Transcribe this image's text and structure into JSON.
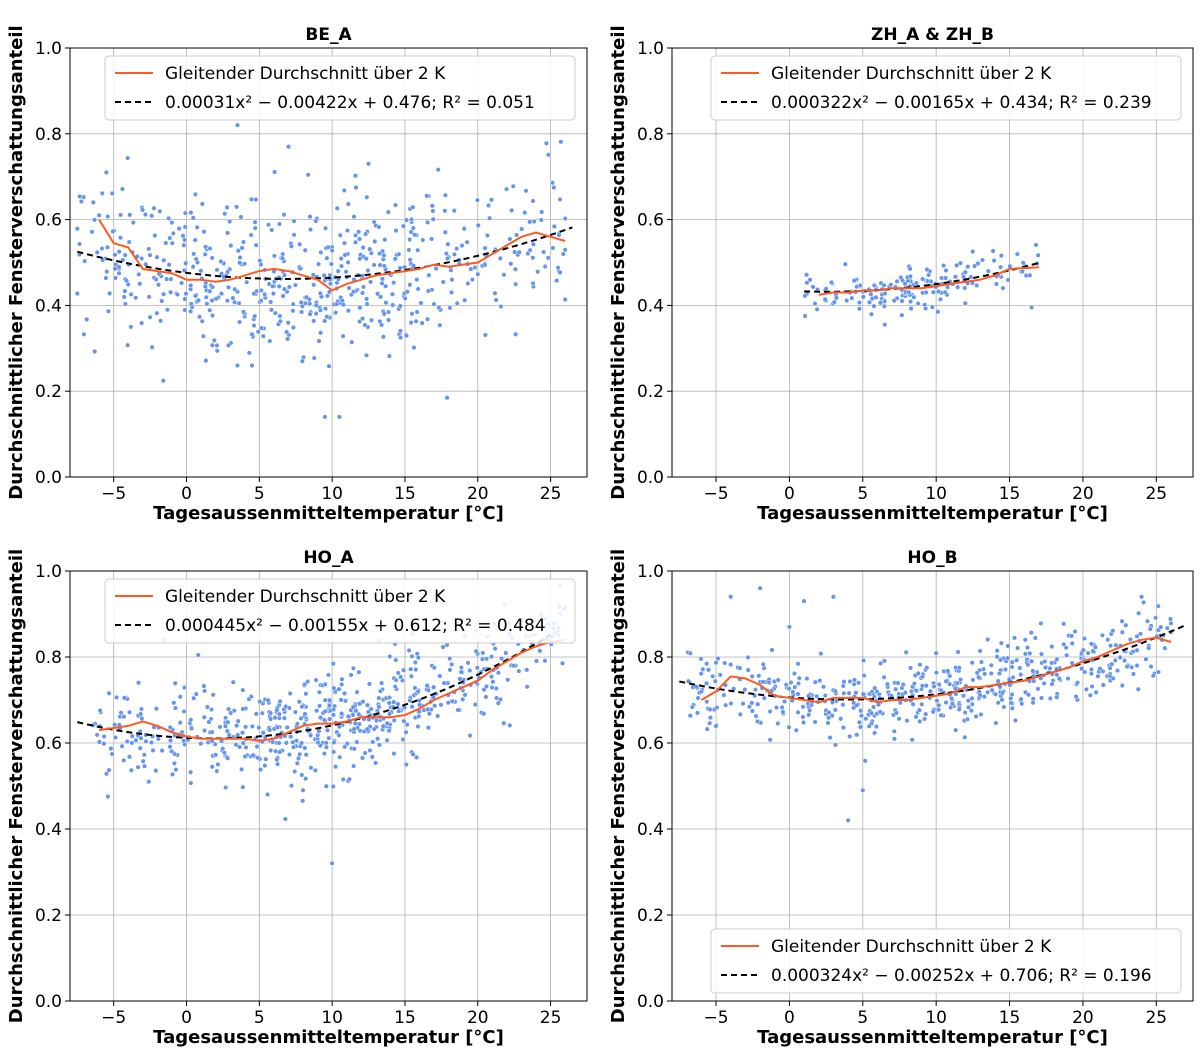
{
  "chart_data": [
    {
      "type": "scatter",
      "title": "BE_A",
      "xlabel": "Tagesaussenmitteltemperatur [°C]",
      "ylabel": "Durchschnittlicher Fensterverschattungsanteil",
      "xlim": [
        -8,
        27.5
      ],
      "ylim": [
        0,
        1
      ],
      "xticks": [
        -5,
        0,
        5,
        10,
        15,
        20,
        25
      ],
      "yticks": [
        0.0,
        0.2,
        0.4,
        0.6,
        0.8,
        1.0
      ],
      "grid": true,
      "legend_position": "top-right",
      "scatter_summary": {
        "x_range": [
          -7.5,
          26
        ],
        "approx_count": 600,
        "spread": 0.09,
        "outliers": [
          [
            3.5,
            0.82
          ],
          [
            7,
            0.77
          ],
          [
            -5.5,
            0.71
          ],
          [
            12.5,
            0.73
          ],
          [
            9.5,
            0.14
          ],
          [
            10.5,
            0.14
          ],
          [
            4.5,
            0.26
          ],
          [
            3.5,
            0.26
          ]
        ]
      },
      "series": [
        {
          "name": "Gleitender Durchschnitt über 2 K",
          "style": "line",
          "color": "#ff5a1f",
          "x": [
            -6,
            -5,
            -4,
            -3,
            -2,
            -1,
            0,
            1,
            2,
            3,
            4,
            5,
            6,
            7,
            8,
            9,
            10,
            11,
            12,
            13,
            14,
            15,
            16,
            17,
            18,
            19,
            20,
            21,
            22,
            23,
            24,
            25,
            26
          ],
          "y": [
            0.6,
            0.545,
            0.535,
            0.485,
            0.48,
            0.475,
            0.46,
            0.46,
            0.455,
            0.46,
            0.47,
            0.48,
            0.485,
            0.48,
            0.47,
            0.46,
            0.435,
            0.45,
            0.46,
            0.47,
            0.475,
            0.48,
            0.485,
            0.495,
            0.49,
            0.495,
            0.5,
            0.52,
            0.54,
            0.56,
            0.57,
            0.56,
            0.55
          ]
        },
        {
          "name": "0.00031x² − 0.00422x + 0.476; R² = 0.051",
          "style": "dashed",
          "color": "#000000",
          "fit": [
            0.00031,
            -0.00422,
            0.476
          ],
          "x_range": [
            -7.5,
            26.5
          ]
        }
      ],
      "legend_entries": [
        "Gleitender Durchschnitt über 2 K",
        "0.00031x² − 0.00422x + 0.476; R² = 0.051"
      ]
    },
    {
      "type": "scatter",
      "title": "ZH_A & ZH_B",
      "xlabel": "Tagesaussenmitteltemperatur [°C]",
      "ylabel": "Durchschnittlicher Fensterverschattungsanteil",
      "xlim": [
        -8,
        27.5
      ],
      "ylim": [
        0,
        1
      ],
      "xticks": [
        -5,
        0,
        5,
        10,
        15,
        20,
        25
      ],
      "yticks": [
        0.0,
        0.2,
        0.4,
        0.6,
        0.8,
        1.0
      ],
      "grid": true,
      "legend_position": "top-right",
      "scatter_summary": {
        "x_range": [
          1,
          17
        ],
        "approx_count": 170,
        "spread": 0.025,
        "outliers": [
          [
            16.5,
            0.395
          ],
          [
            6.5,
            0.355
          ]
        ]
      },
      "series": [
        {
          "name": "Gleitender Durchschnitt über 2 K",
          "style": "line",
          "color": "#ff5a1f",
          "x": [
            2,
            3,
            4,
            5,
            6,
            7,
            8,
            9,
            10,
            11,
            12,
            13,
            14,
            15,
            16,
            17
          ],
          "y": [
            0.425,
            0.43,
            0.43,
            0.435,
            0.435,
            0.44,
            0.44,
            0.44,
            0.445,
            0.45,
            0.455,
            0.46,
            0.47,
            0.485,
            0.487,
            0.489
          ]
        },
        {
          "name": "0.000322x² − 0.00165x + 0.434; R² = 0.239",
          "style": "dashed",
          "color": "#000000",
          "fit": [
            0.000322,
            -0.00165,
            0.434
          ],
          "x_range": [
            1,
            17
          ]
        }
      ],
      "legend_entries": [
        "Gleitender Durchschnitt über 2 K",
        "0.000322x² − 0.00165x + 0.434; R² = 0.239"
      ]
    },
    {
      "type": "scatter",
      "title": "HO_A",
      "xlabel": "Tagesaussenmitteltemperatur [°C]",
      "ylabel": "Durchschnittlicher Fensterverschattungsanteil",
      "xlim": [
        -8,
        27.5
      ],
      "ylim": [
        0,
        1
      ],
      "xticks": [
        -5,
        0,
        5,
        10,
        15,
        20,
        25
      ],
      "yticks": [
        0.0,
        0.2,
        0.4,
        0.6,
        0.8,
        1.0
      ],
      "grid": true,
      "legend_position": "top-right",
      "scatter_summary": {
        "x_range": [
          -6.5,
          26
        ],
        "approx_count": 620,
        "spread": 0.06,
        "outliers": [
          [
            10,
            0.32
          ],
          [
            -1.5,
            0.84
          ],
          [
            8,
            0.49
          ]
        ]
      },
      "series": [
        {
          "name": "Gleitender Durchschnitt über 2 K",
          "style": "line",
          "color": "#ff5a1f",
          "x": [
            -6,
            -5,
            -4,
            -3,
            -2,
            -1,
            0,
            1,
            2,
            3,
            4,
            5,
            6,
            7,
            8,
            9,
            10,
            11,
            12,
            13,
            14,
            15,
            16,
            17,
            18,
            19,
            20,
            21,
            22,
            23,
            24,
            25,
            26
          ],
          "y": [
            0.63,
            0.635,
            0.64,
            0.65,
            0.64,
            0.625,
            0.615,
            0.61,
            0.61,
            0.61,
            0.61,
            0.605,
            0.61,
            0.625,
            0.64,
            0.645,
            0.645,
            0.65,
            0.66,
            0.66,
            0.66,
            0.665,
            0.68,
            0.7,
            0.715,
            0.73,
            0.745,
            0.77,
            0.79,
            0.81,
            0.825,
            0.835,
            0.84
          ]
        },
        {
          "name": "0.000445x² − 0.00155x + 0.612; R² = 0.484",
          "style": "dashed",
          "color": "#000000",
          "fit": [
            0.000445,
            -0.00155,
            0.612
          ],
          "x_range": [
            -7.5,
            25
          ]
        }
      ],
      "legend_entries": [
        "Gleitender Durchschnitt über 2 K",
        "0.000445x² − 0.00155x + 0.612; R² = 0.484"
      ]
    },
    {
      "type": "scatter",
      "title": "HO_B",
      "xlabel": "Tagesaussenmitteltemperatur [°C]",
      "ylabel": "Durchschnittlicher Fensterverschattungsanteil",
      "xlim": [
        -8,
        27.5
      ],
      "ylim": [
        0,
        1
      ],
      "xticks": [
        -5,
        0,
        5,
        10,
        15,
        20,
        25
      ],
      "yticks": [
        0.0,
        0.2,
        0.4,
        0.6,
        0.8,
        1.0
      ],
      "grid": true,
      "legend_position": "bottom-right",
      "scatter_summary": {
        "x_range": [
          -7,
          26
        ],
        "approx_count": 560,
        "spread": 0.045,
        "outliers": [
          [
            -4,
            0.94
          ],
          [
            -2,
            0.96
          ],
          [
            1,
            0.93
          ],
          [
            3,
            0.94
          ],
          [
            4,
            0.42
          ],
          [
            5,
            0.49
          ],
          [
            24,
            0.94
          ],
          [
            0,
            0.87
          ]
        ]
      },
      "series": [
        {
          "name": "Gleitender Durchschnitt über 2 K",
          "style": "line",
          "color": "#ff5a1f",
          "x": [
            -6,
            -5,
            -4,
            -3,
            -2,
            -1,
            0,
            1,
            2,
            3,
            4,
            5,
            6,
            7,
            8,
            9,
            10,
            11,
            12,
            13,
            14,
            15,
            16,
            17,
            18,
            19,
            20,
            21,
            22,
            23,
            24,
            25,
            26
          ],
          "y": [
            0.7,
            0.72,
            0.755,
            0.75,
            0.735,
            0.71,
            0.705,
            0.7,
            0.695,
            0.705,
            0.705,
            0.705,
            0.695,
            0.7,
            0.7,
            0.705,
            0.71,
            0.715,
            0.73,
            0.73,
            0.735,
            0.74,
            0.745,
            0.755,
            0.765,
            0.775,
            0.79,
            0.8,
            0.815,
            0.83,
            0.84,
            0.845,
            0.835
          ]
        },
        {
          "name": "0.000324x² − 0.00252x + 0.706; R² = 0.196",
          "style": "dashed",
          "color": "#000000",
          "fit": [
            0.000324,
            -0.00252,
            0.706
          ],
          "x_range": [
            -7.5,
            27
          ]
        }
      ],
      "legend_entries": [
        "Gleitender Durchschnitt über 2 K",
        "0.000324x² − 0.00252x + 0.706; R² = 0.196"
      ]
    }
  ],
  "colors": {
    "scatter": "#6495ed",
    "moving_average": "#ff5a1f",
    "fit": "#000000",
    "grid": "#b0b0b0"
  }
}
